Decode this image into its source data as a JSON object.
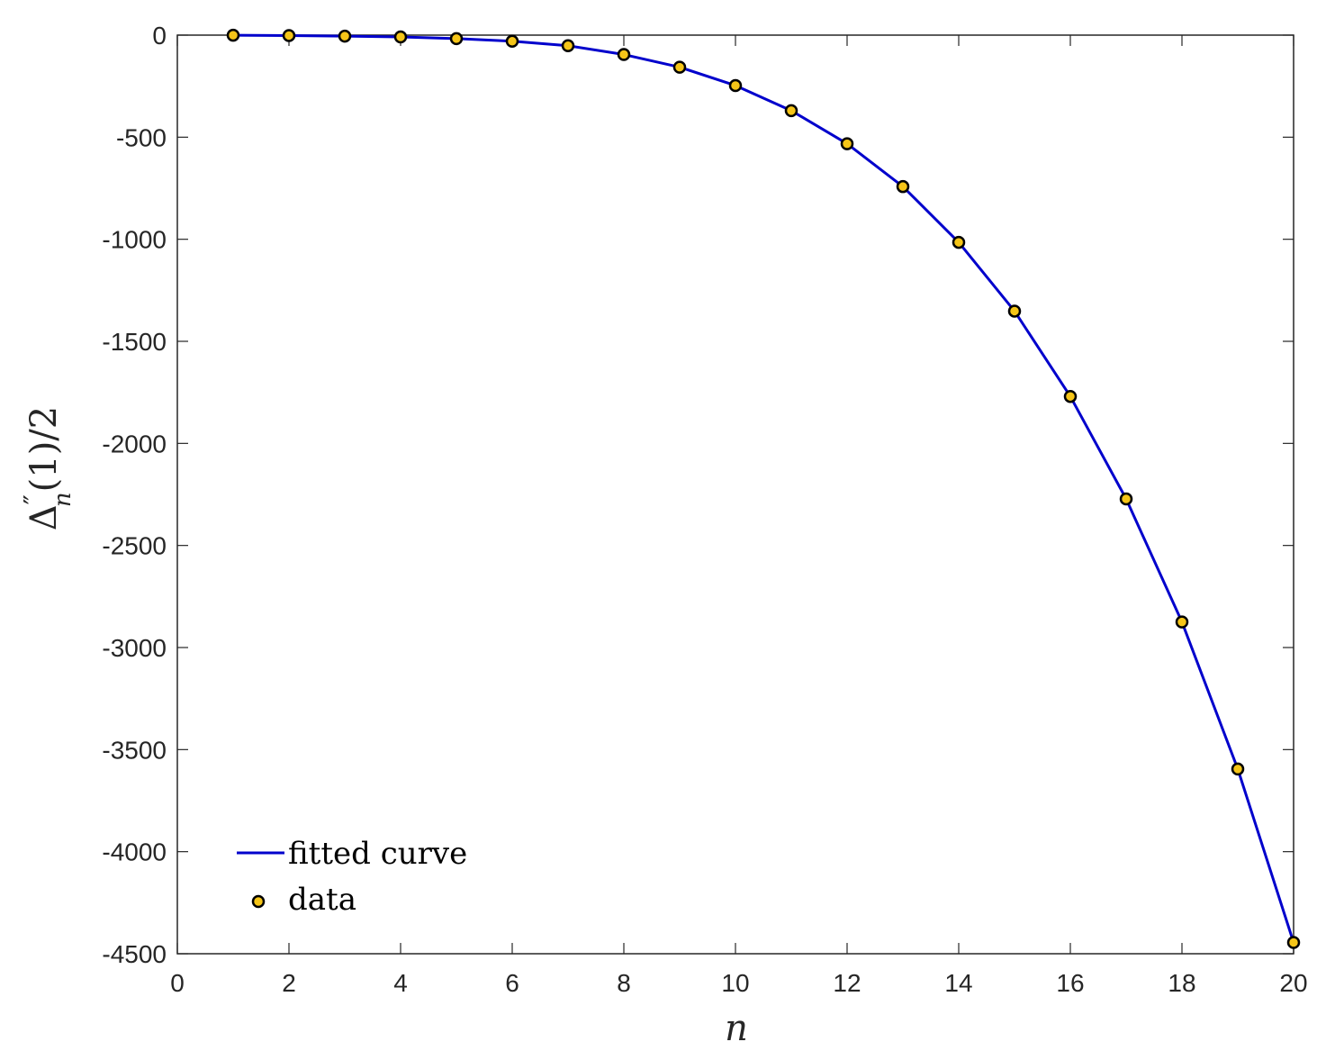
{
  "chart_data": {
    "type": "line",
    "title": "",
    "xlabel": "n",
    "ylabel": "Δ''_n(1)/2",
    "ylabel_parts": {
      "symbol": "Δ",
      "superscript": "″",
      "subscript": "n",
      "rest": "(1)/2"
    },
    "xlim": [
      0,
      20
    ],
    "ylim": [
      -4500,
      0
    ],
    "x_ticks": [
      0,
      2,
      4,
      6,
      8,
      10,
      12,
      14,
      16,
      18,
      20
    ],
    "y_ticks": [
      0,
      -500,
      -1000,
      -1500,
      -2000,
      -2500,
      -3000,
      -3500,
      -4000,
      -4500
    ],
    "grid": false,
    "legend_position": "bottom-left",
    "series": [
      {
        "name": "fitted curve",
        "kind": "line",
        "color": "#0000cc",
        "x": [
          1,
          2,
          3,
          4,
          5,
          6,
          7,
          8,
          9,
          10,
          11,
          12,
          13,
          14,
          15,
          16,
          17,
          18,
          19,
          20
        ],
        "y": [
          -0.5,
          -2,
          -5,
          -9,
          -17,
          -30,
          -52,
          -95,
          -157,
          -247,
          -370,
          -532,
          -742,
          -1015,
          -1352,
          -1770,
          -2272,
          -2875,
          -3595,
          -4445
        ]
      },
      {
        "name": "data",
        "kind": "scatter",
        "color": "#f5c518",
        "edge_color": "#000000",
        "x": [
          1,
          2,
          3,
          4,
          5,
          6,
          7,
          8,
          9,
          10,
          11,
          12,
          13,
          14,
          15,
          16,
          17,
          18,
          19,
          20
        ],
        "y": [
          -0.5,
          -2,
          -5,
          -9,
          -17,
          -30,
          -52,
          -95,
          -157,
          -247,
          -370,
          -532,
          -742,
          -1015,
          -1352,
          -1770,
          -2272,
          -2875,
          -3595,
          -4445
        ]
      }
    ]
  }
}
